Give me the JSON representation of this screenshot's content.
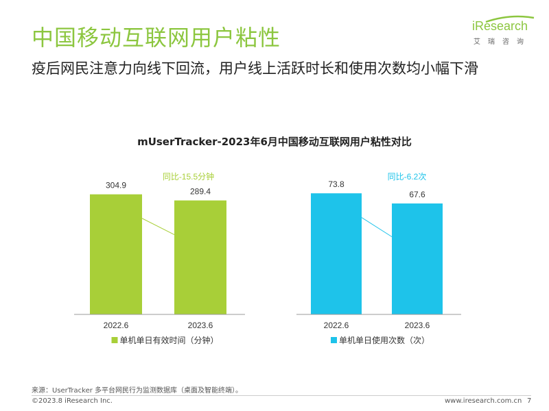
{
  "header": {
    "title": "中国移动互联网用户粘性",
    "subtitle": "疫后网民注意力向线下回流，用户线上活跃时长和使用次数均小幅下滑"
  },
  "logo": {
    "brand": "iResearch",
    "sub": "艾瑞咨询"
  },
  "chart_data": [
    {
      "type": "bar",
      "title": "mUserTracker-2023年6月中国移动互联网用户粘性对比",
      "categories": [
        "2022.6",
        "2023.6"
      ],
      "series": [
        {
          "name": "单机单日有效时间（分钟）",
          "values": [
            304.9,
            289.4
          ]
        }
      ],
      "value_labels": [
        "304.9",
        "289.4"
      ],
      "annotation": "同比-15.5分钟",
      "ylim": [
        0,
        400
      ],
      "color": "#a8cf38"
    },
    {
      "type": "bar",
      "title": "mUserTracker-2023年6月中国移动互联网用户粘性对比",
      "categories": [
        "2022.6",
        "2023.6"
      ],
      "series": [
        {
          "name": "单机单日使用次数（次）",
          "values": [
            73.8,
            67.6
          ]
        }
      ],
      "value_labels": [
        "73.8",
        "67.6"
      ],
      "annotation": "同比-6.2次",
      "ylim": [
        0,
        96
      ],
      "color": "#1ec3ea"
    }
  ],
  "chart_title": "mUserTracker-2023年6月中国移动互联网用户粘性对比",
  "footer": {
    "source": "来源：UserTracker 多平台网民行为监测数据库（桌面及智能终端）。",
    "copyright": "©2023.8 iResearch Inc.",
    "url": "www.iresearch.com.cn",
    "page": "7"
  }
}
